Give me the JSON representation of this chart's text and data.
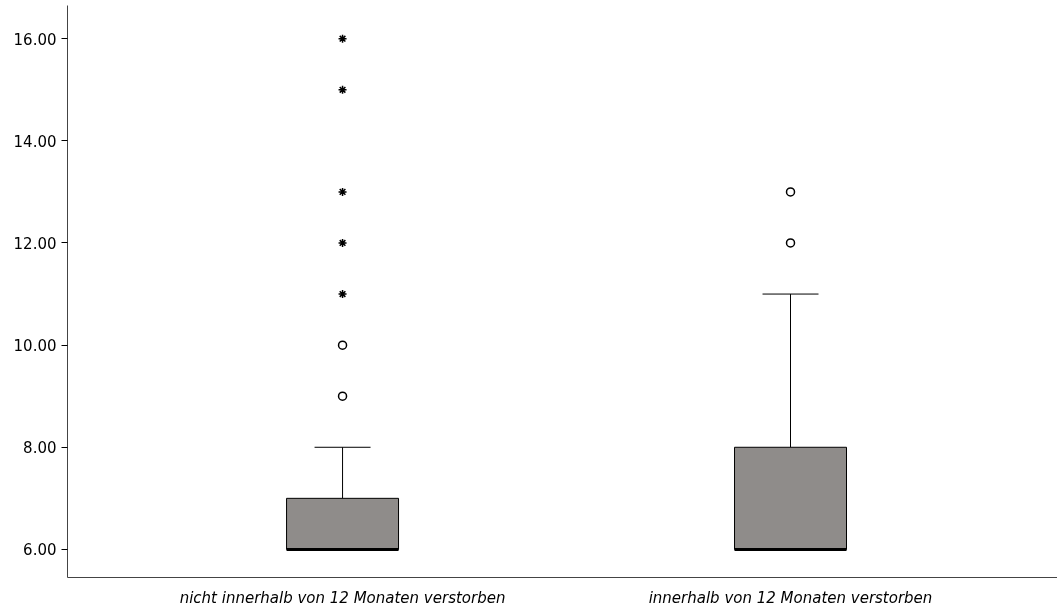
{
  "chart_data": {
    "type": "box",
    "categories": [
      "nicht innerhalb von 12 Monaten verstorben",
      "innerhalb von 12 Monaten verstorben"
    ],
    "boxes": [
      {
        "low": 6,
        "q1": 6,
        "median": 6,
        "q3": 7,
        "high": 8,
        "outliers": [
          9,
          10,
          11,
          12,
          13,
          15,
          16
        ]
      },
      {
        "low": 6,
        "q1": 6,
        "median": 6,
        "q3": 8,
        "high": 11,
        "outliers": [
          12,
          13
        ]
      }
    ],
    "color": "#8f8c8a",
    "ylim": [
      5.45,
      16.65
    ],
    "yticks": [
      {
        "value": 6,
        "label": "6.00"
      },
      {
        "value": 8,
        "label": "8.00"
      },
      {
        "value": 10,
        "label": "10.00"
      },
      {
        "value": 12,
        "label": "12.00"
      },
      {
        "value": 14,
        "label": "14.00"
      },
      {
        "value": 16,
        "label": "16.00"
      }
    ],
    "grid": false
  }
}
